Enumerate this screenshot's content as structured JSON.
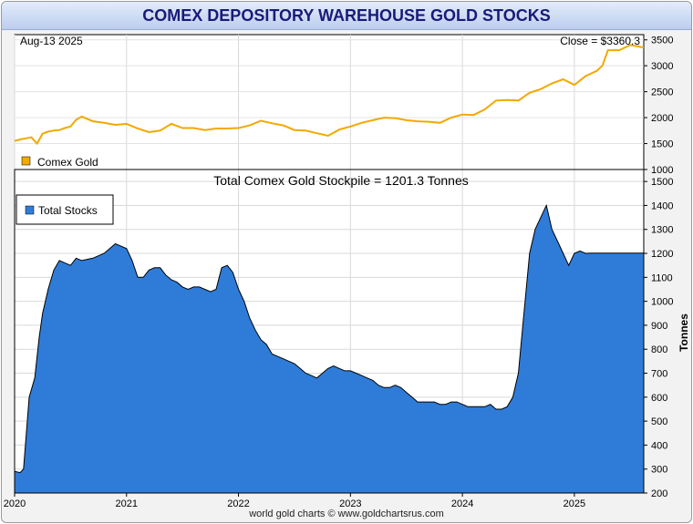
{
  "title": "COMEX DEPOSITORY WAREHOUSE GOLD STOCKS",
  "footer": "world gold charts © www.goldchartsrus.com",
  "colors": {
    "gold_line": "#f2a900",
    "stocks_fill": "#2f7cd8",
    "stocks_edge": "#000000",
    "grid": "#d9d9d9"
  },
  "chart_data": [
    {
      "type": "line",
      "date_label": "Aug-13  2025",
      "close_label": "Close = $3360.3",
      "legend": {
        "label": "Comex Gold",
        "placement": "bottom-left"
      },
      "ylim": [
        1000,
        3600
      ],
      "yticks": [
        "1000",
        "1500",
        "2000",
        "2500",
        "3000",
        "3500"
      ],
      "xlim": [
        2020.0,
        2025.62
      ],
      "grid": true,
      "series": [
        {
          "name": "Comex Gold",
          "x": [
            2020.0,
            2020.05,
            2020.1,
            2020.15,
            2020.2,
            2020.25,
            2020.3,
            2020.35,
            2020.4,
            2020.45,
            2020.5,
            2020.55,
            2020.6,
            2020.7,
            2020.8,
            2020.9,
            2021.0,
            2021.1,
            2021.2,
            2021.3,
            2021.4,
            2021.5,
            2021.6,
            2021.7,
            2021.8,
            2021.9,
            2022.0,
            2022.1,
            2022.2,
            2022.3,
            2022.4,
            2022.5,
            2022.6,
            2022.7,
            2022.8,
            2022.9,
            2023.0,
            2023.1,
            2023.2,
            2023.3,
            2023.4,
            2023.5,
            2023.6,
            2023.7,
            2023.8,
            2023.9,
            2024.0,
            2024.1,
            2024.2,
            2024.3,
            2024.4,
            2024.5,
            2024.6,
            2024.7,
            2024.8,
            2024.9,
            2025.0,
            2025.1,
            2025.2,
            2025.25,
            2025.3,
            2025.4,
            2025.5,
            2025.55,
            2025.6,
            2025.62
          ],
          "values": [
            1550,
            1580,
            1600,
            1620,
            1500,
            1690,
            1730,
            1750,
            1760,
            1800,
            1830,
            1960,
            2020,
            1930,
            1900,
            1860,
            1880,
            1790,
            1720,
            1750,
            1880,
            1800,
            1800,
            1760,
            1790,
            1790,
            1800,
            1850,
            1940,
            1890,
            1850,
            1760,
            1750,
            1700,
            1650,
            1770,
            1830,
            1900,
            1950,
            2000,
            1990,
            1950,
            1930,
            1920,
            1900,
            2000,
            2060,
            2050,
            2160,
            2330,
            2340,
            2330,
            2480,
            2550,
            2660,
            2740,
            2630,
            2800,
            2900,
            3000,
            3300,
            3300,
            3400,
            3380,
            3360,
            3360
          ]
        }
      ]
    },
    {
      "type": "area",
      "title": "Total Comex Gold Stockpile = 1201.3 Tonnes",
      "legend": {
        "label": "Total Stocks",
        "placement": "top-left"
      },
      "ylabel": "Tonnes",
      "ylim": [
        200,
        1550
      ],
      "yticks": [
        "200",
        "300",
        "400",
        "500",
        "600",
        "700",
        "800",
        "900",
        "1000",
        "1100",
        "1200",
        "1300",
        "1400",
        "1500"
      ],
      "xlim": [
        2020.0,
        2025.62
      ],
      "xticks": [
        "2020",
        "2021",
        "2022",
        "2023",
        "2024",
        "2025"
      ],
      "grid": true,
      "series": [
        {
          "name": "Total Stocks",
          "x": [
            2020.0,
            2020.05,
            2020.08,
            2020.13,
            2020.18,
            2020.22,
            2020.25,
            2020.3,
            2020.35,
            2020.4,
            2020.45,
            2020.5,
            2020.55,
            2020.6,
            2020.7,
            2020.8,
            2020.9,
            2021.0,
            2021.05,
            2021.1,
            2021.15,
            2021.2,
            2021.25,
            2021.3,
            2021.35,
            2021.4,
            2021.45,
            2021.5,
            2021.55,
            2021.6,
            2021.65,
            2021.7,
            2021.75,
            2021.8,
            2021.85,
            2021.9,
            2021.95,
            2022.0,
            2022.05,
            2022.1,
            2022.15,
            2022.2,
            2022.25,
            2022.3,
            2022.35,
            2022.4,
            2022.45,
            2022.5,
            2022.55,
            2022.6,
            2022.65,
            2022.7,
            2022.75,
            2022.8,
            2022.85,
            2022.9,
            2022.95,
            2023.0,
            2023.05,
            2023.1,
            2023.15,
            2023.2,
            2023.25,
            2023.3,
            2023.35,
            2023.4,
            2023.45,
            2023.5,
            2023.55,
            2023.6,
            2023.65,
            2023.7,
            2023.75,
            2023.8,
            2023.85,
            2023.9,
            2023.95,
            2024.0,
            2024.05,
            2024.1,
            2024.15,
            2024.2,
            2024.25,
            2024.3,
            2024.35,
            2024.4,
            2024.45,
            2024.5,
            2024.55,
            2024.6,
            2024.65,
            2024.7,
            2024.75,
            2024.8,
            2024.85,
            2024.9,
            2024.95,
            2025.0,
            2025.05,
            2025.1,
            2025.15,
            2025.2,
            2025.25,
            2025.3,
            2025.35,
            2025.4,
            2025.45,
            2025.5,
            2025.55,
            2025.6,
            2025.62
          ],
          "values": [
            290,
            285,
            300,
            600,
            680,
            850,
            950,
            1050,
            1130,
            1170,
            1160,
            1150,
            1180,
            1170,
            1180,
            1200,
            1240,
            1220,
            1170,
            1100,
            1100,
            1130,
            1140,
            1140,
            1110,
            1090,
            1080,
            1060,
            1050,
            1060,
            1060,
            1050,
            1040,
            1050,
            1140,
            1150,
            1120,
            1050,
            1000,
            930,
            880,
            840,
            820,
            780,
            770,
            760,
            750,
            740,
            720,
            700,
            690,
            680,
            700,
            720,
            730,
            720,
            710,
            710,
            700,
            690,
            680,
            670,
            650,
            640,
            640,
            650,
            640,
            620,
            600,
            580,
            580,
            580,
            580,
            570,
            570,
            580,
            580,
            570,
            560,
            560,
            560,
            560,
            570,
            550,
            550,
            560,
            600,
            700,
            950,
            1200,
            1300,
            1350,
            1400,
            1300,
            1250,
            1200,
            1150,
            1200,
            1210,
            1200,
            1201,
            1201,
            1201,
            1201,
            1201,
            1201,
            1201,
            1201,
            1201,
            1201,
            1201
          ]
        }
      ]
    }
  ]
}
